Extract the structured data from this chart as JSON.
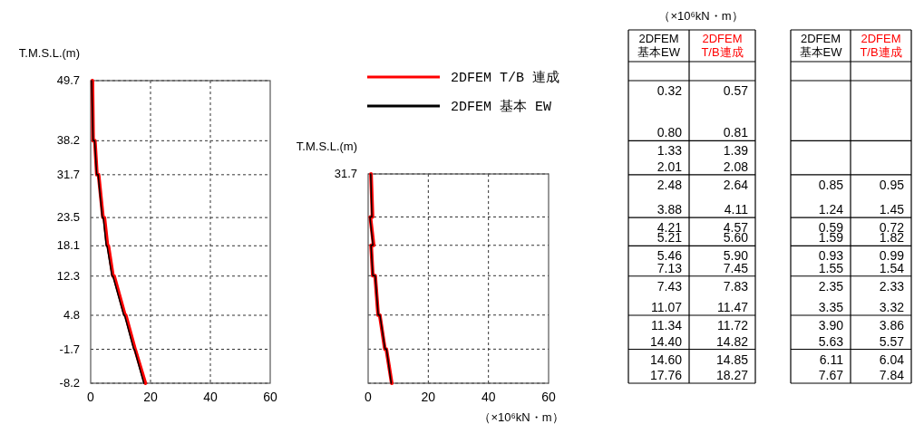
{
  "chart_data": [
    {
      "type": "line",
      "ylabel": "T.M.S.L.(m)",
      "xlim": [
        0,
        60
      ],
      "xticks": [
        0,
        20,
        40,
        60
      ],
      "ylim": [
        -8.2,
        49.7
      ],
      "yticks": [
        49.7,
        38.2,
        31.7,
        23.5,
        18.1,
        12.3,
        4.8,
        -1.7,
        -8.2
      ],
      "grid": true,
      "legend": "right",
      "line_style": "solid",
      "series": [
        {
          "name": "2DFEM T/B 連成",
          "color": "#ff0000",
          "x": [
            0.57,
            0.81,
            1.39,
            2.08,
            2.64,
            4.11,
            4.57,
            5.6,
            5.9,
            7.45,
            7.83,
            11.47,
            11.72,
            14.82,
            14.85,
            18.27
          ],
          "values": [
            49.7,
            38.2,
            38.2,
            31.7,
            31.7,
            23.5,
            23.5,
            18.1,
            18.1,
            12.3,
            12.3,
            4.8,
            4.8,
            -1.7,
            -1.7,
            -8.2
          ]
        },
        {
          "name": "2DFEM 基本 EW",
          "color": "#000000",
          "x": [
            0.32,
            0.8,
            1.33,
            2.01,
            2.48,
            3.88,
            4.21,
            5.21,
            5.46,
            7.13,
            7.43,
            11.07,
            11.34,
            14.4,
            14.6,
            17.76
          ],
          "values": [
            49.7,
            38.2,
            38.2,
            31.7,
            31.7,
            23.5,
            23.5,
            18.1,
            18.1,
            12.3,
            12.3,
            4.8,
            4.8,
            -1.7,
            -1.7,
            -8.2
          ]
        }
      ]
    },
    {
      "type": "line",
      "ylabel": "T.M.S.L.(m)",
      "xlabel": "（×10⁶kN・m）",
      "xlim": [
        0,
        60
      ],
      "xticks": [
        0,
        20,
        40,
        60
      ],
      "ylim": [
        -8.2,
        31.7
      ],
      "yticks": [
        31.7,
        23.5,
        18.1,
        12.3,
        4.8,
        -1.7,
        -8.2
      ],
      "tick_labels": "x",
      "annotations": [
        {
          "text": "31.7",
          "x": 0,
          "y": 31.7
        }
      ],
      "grid": true,
      "line_style": "solid",
      "series": [
        {
          "color": "#ff0000",
          "x": [
            0.95,
            1.45,
            0.72,
            1.82,
            0.99,
            1.54,
            2.33,
            3.32,
            3.86,
            5.57,
            6.04,
            7.84
          ],
          "values": [
            31.7,
            23.5,
            23.5,
            18.1,
            18.1,
            12.3,
            12.3,
            4.8,
            4.8,
            -1.7,
            -1.7,
            -8.2
          ]
        },
        {
          "color": "#000000",
          "x": [
            0.85,
            1.24,
            0.59,
            1.59,
            0.93,
            1.55,
            2.35,
            3.35,
            3.9,
            5.63,
            6.11,
            7.67
          ],
          "values": [
            31.7,
            23.5,
            23.5,
            18.1,
            18.1,
            12.3,
            12.3,
            4.8,
            4.8,
            -1.7,
            -1.7,
            -8.2
          ]
        }
      ]
    },
    {
      "type": "other",
      "title": "（×10⁶kN・m）",
      "categories": [
        "2DFEM\n基本EW",
        "2DFEM\nT/B連成"
      ],
      "colors": [
        "#000000",
        "#ff0000"
      ],
      "cell_labels": [
        [
          null,
          null
        ],
        [
          "0.32",
          "0.57"
        ],
        [
          "0.80",
          "0.81"
        ],
        [
          "1.33",
          "1.39"
        ],
        [
          "2.01",
          "2.08"
        ],
        [
          "2.48",
          "2.64"
        ],
        [
          "3.88",
          "4.11"
        ],
        [
          "4.21",
          "4.57"
        ],
        [
          "5.21",
          "5.60"
        ],
        [
          "5.46",
          "5.90"
        ],
        [
          "7.13",
          "7.45"
        ],
        [
          "7.43",
          "7.83"
        ],
        [
          "11.07",
          "11.47"
        ],
        [
          "11.34",
          "11.72"
        ],
        [
          "14.40",
          "14.82"
        ],
        [
          "14.60",
          "14.85"
        ],
        [
          "17.76",
          "18.27"
        ]
      ]
    },
    {
      "type": "other",
      "categories": [
        "2DFEM\n基本EW",
        "2DFEM\nT/B連成"
      ],
      "colors": [
        "#000000",
        "#ff0000"
      ],
      "cell_labels": [
        [
          null,
          null
        ],
        [
          null,
          null
        ],
        [
          null,
          null
        ],
        [
          null,
          null
        ],
        [
          null,
          null
        ],
        [
          "0.85",
          "0.95"
        ],
        [
          "1.24",
          "1.45"
        ],
        [
          "0.59",
          "0.72"
        ],
        [
          "1.59",
          "1.82"
        ],
        [
          "0.93",
          "0.99"
        ],
        [
          "1.55",
          "1.54"
        ],
        [
          "2.35",
          "2.33"
        ],
        [
          "3.35",
          "3.32"
        ],
        [
          "3.90",
          "3.86"
        ],
        [
          "5.63",
          "5.57"
        ],
        [
          "6.11",
          "6.04"
        ],
        [
          "7.67",
          "7.84"
        ]
      ]
    }
  ]
}
